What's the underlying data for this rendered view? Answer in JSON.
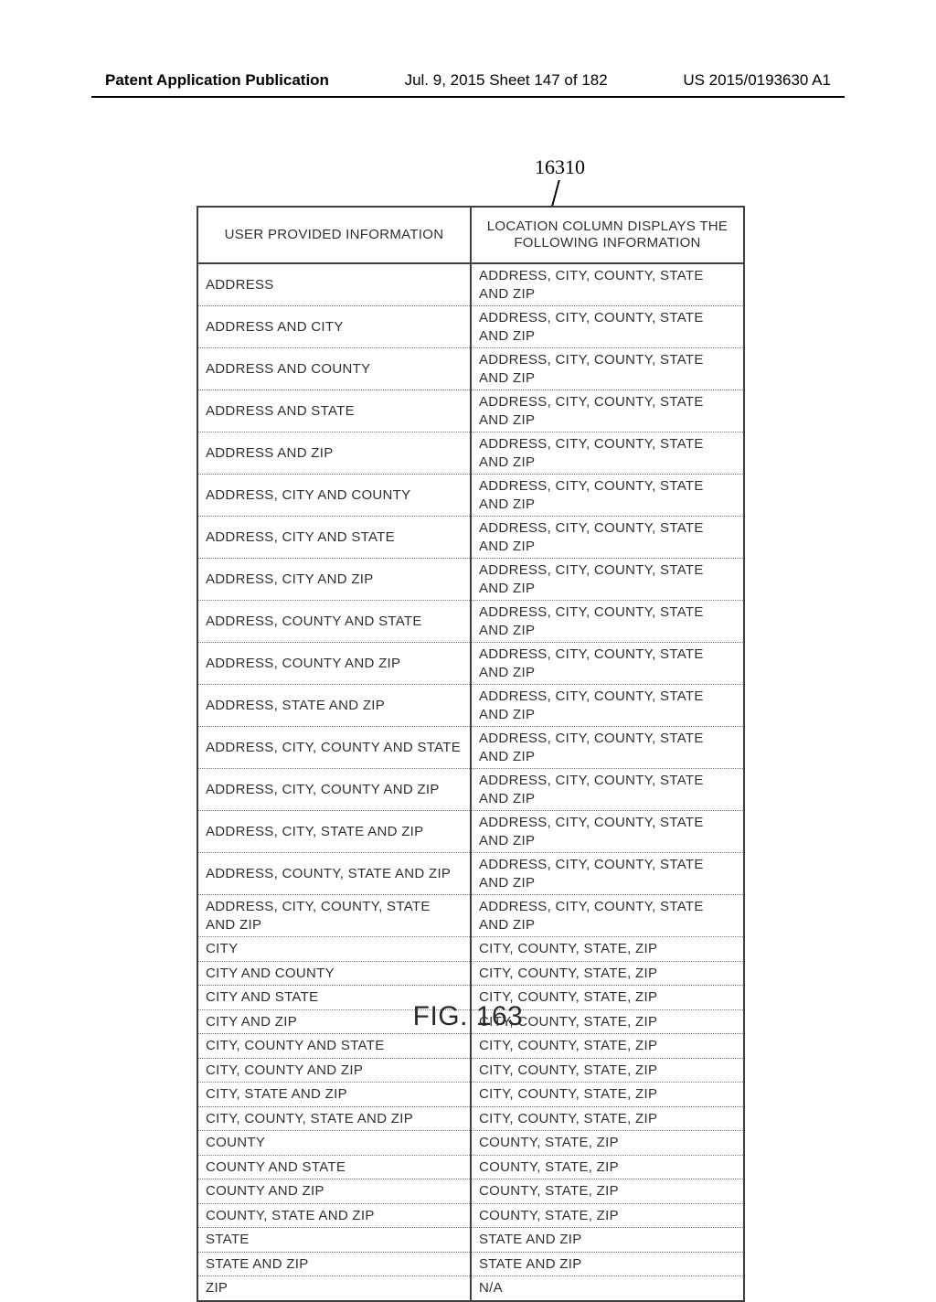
{
  "header": {
    "left": "Patent Application Publication",
    "center": "Jul. 9, 2015  Sheet 147 of 182",
    "right": "US 2015/0193630 A1"
  },
  "reference_numeral": "16310",
  "table": {
    "columns": [
      "USER PROVIDED INFORMATION",
      "LOCATION COLUMN DISPLAYS THE FOLLOWING INFORMATION"
    ],
    "rows": [
      [
        "ADDRESS",
        "ADDRESS, CITY, COUNTY, STATE AND ZIP"
      ],
      [
        "ADDRESS AND CITY",
        "ADDRESS, CITY, COUNTY, STATE AND ZIP"
      ],
      [
        "ADDRESS AND COUNTY",
        "ADDRESS, CITY, COUNTY, STATE AND ZIP"
      ],
      [
        "ADDRESS AND STATE",
        "ADDRESS, CITY, COUNTY, STATE AND ZIP"
      ],
      [
        "ADDRESS AND ZIP",
        "ADDRESS, CITY, COUNTY, STATE AND ZIP"
      ],
      [
        "ADDRESS, CITY AND COUNTY",
        "ADDRESS, CITY, COUNTY, STATE AND ZIP"
      ],
      [
        "ADDRESS, CITY AND STATE",
        "ADDRESS, CITY, COUNTY, STATE AND ZIP"
      ],
      [
        "ADDRESS, CITY AND ZIP",
        "ADDRESS, CITY, COUNTY, STATE AND ZIP"
      ],
      [
        "ADDRESS, COUNTY AND STATE",
        "ADDRESS, CITY, COUNTY, STATE AND ZIP"
      ],
      [
        "ADDRESS, COUNTY AND ZIP",
        "ADDRESS, CITY, COUNTY, STATE AND ZIP"
      ],
      [
        "ADDRESS, STATE AND ZIP",
        "ADDRESS, CITY, COUNTY, STATE AND ZIP"
      ],
      [
        "ADDRESS, CITY, COUNTY AND STATE",
        "ADDRESS, CITY, COUNTY, STATE AND ZIP"
      ],
      [
        "ADDRESS, CITY, COUNTY AND ZIP",
        "ADDRESS, CITY, COUNTY, STATE AND ZIP"
      ],
      [
        "ADDRESS, CITY, STATE AND ZIP",
        "ADDRESS, CITY, COUNTY, STATE AND ZIP"
      ],
      [
        "ADDRESS, COUNTY, STATE AND ZIP",
        "ADDRESS, CITY, COUNTY, STATE AND ZIP"
      ],
      [
        "ADDRESS, CITY, COUNTY, STATE AND ZIP",
        "ADDRESS, CITY, COUNTY, STATE AND ZIP"
      ],
      [
        "CITY",
        "CITY, COUNTY, STATE, ZIP"
      ],
      [
        "CITY AND COUNTY",
        "CITY, COUNTY, STATE, ZIP"
      ],
      [
        "CITY AND STATE",
        "CITY, COUNTY, STATE, ZIP"
      ],
      [
        "CITY AND ZIP",
        "CITY, COUNTY, STATE, ZIP"
      ],
      [
        "CITY, COUNTY AND STATE",
        "CITY, COUNTY, STATE, ZIP"
      ],
      [
        "CITY, COUNTY AND ZIP",
        "CITY, COUNTY, STATE, ZIP"
      ],
      [
        "CITY, STATE AND ZIP",
        "CITY, COUNTY, STATE, ZIP"
      ],
      [
        "CITY, COUNTY, STATE AND ZIP",
        "CITY, COUNTY, STATE, ZIP"
      ],
      [
        "COUNTY",
        "COUNTY, STATE, ZIP"
      ],
      [
        "COUNTY AND STATE",
        "COUNTY, STATE, ZIP"
      ],
      [
        "COUNTY AND ZIP",
        "COUNTY, STATE, ZIP"
      ],
      [
        "COUNTY, STATE AND ZIP",
        "COUNTY, STATE, ZIP"
      ],
      [
        "STATE",
        "STATE AND ZIP"
      ],
      [
        "STATE AND ZIP",
        "STATE AND ZIP"
      ],
      [
        "ZIP",
        "N/A"
      ]
    ]
  },
  "figure_caption": "FIG. 163"
}
